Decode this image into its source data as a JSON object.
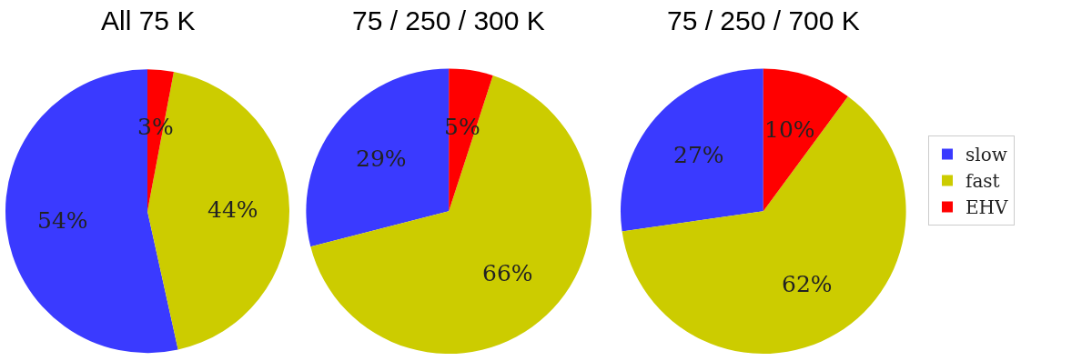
{
  "chart_data": [
    {
      "type": "pie",
      "title": "All 75 K",
      "categories": [
        "slow",
        "fast",
        "EHV"
      ],
      "values": [
        54,
        44,
        3
      ],
      "value_labels": [
        "54%",
        "44%",
        "3%"
      ],
      "colors": [
        "#3a3aff",
        "#cccc00",
        "#ff0000"
      ],
      "legend": "right"
    },
    {
      "type": "pie",
      "title": "75 / 250 / 300 K",
      "categories": [
        null,
        null,
        null
      ],
      "values": [
        29,
        66,
        5
      ],
      "value_labels": [
        "29%",
        "66%",
        "5%"
      ],
      "colors": [
        "#3a3aff",
        "#cccc00",
        "#ff0000"
      ]
    },
    {
      "type": "pie",
      "title": "75 / 250 / 700 K",
      "categories": [
        null,
        null,
        null
      ],
      "values": [
        27,
        62,
        10
      ],
      "value_labels": [
        "27%",
        "62%",
        "10%"
      ],
      "colors": [
        "#3a3aff",
        "#cccc00",
        "#ff0000"
      ]
    }
  ]
}
